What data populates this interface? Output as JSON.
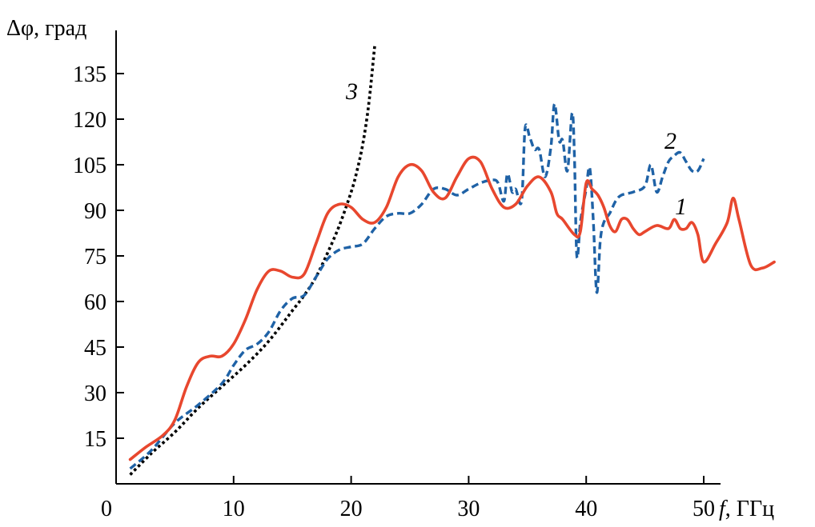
{
  "chart_data": {
    "type": "line",
    "ylabel": "Δφ, град",
    "xlabel_var": "f",
    "xlabel_unit": ", ГГц",
    "x_ticks": [
      "0",
      "10",
      "20",
      "30",
      "40",
      "50"
    ],
    "y_ticks": [
      "15",
      "30",
      "45",
      "60",
      "75",
      "90",
      "105",
      "120",
      "135"
    ],
    "xlim": [
      0,
      56
    ],
    "ylim": [
      0,
      145
    ],
    "grid": false,
    "legend": "none",
    "series": [
      {
        "label": "1",
        "color": "#e8472e",
        "style": "solid",
        "points": [
          [
            1.2,
            8
          ],
          [
            2.5,
            12
          ],
          [
            4,
            16
          ],
          [
            5,
            21
          ],
          [
            6,
            32
          ],
          [
            7,
            40
          ],
          [
            8,
            42
          ],
          [
            9,
            42
          ],
          [
            10,
            46
          ],
          [
            11,
            54
          ],
          [
            12,
            64
          ],
          [
            13,
            70
          ],
          [
            14,
            70
          ],
          [
            15,
            68
          ],
          [
            16,
            69
          ],
          [
            17,
            79
          ],
          [
            18,
            89
          ],
          [
            19,
            92
          ],
          [
            20,
            91
          ],
          [
            21,
            87
          ],
          [
            22,
            86
          ],
          [
            23,
            91
          ],
          [
            24,
            101
          ],
          [
            25,
            105
          ],
          [
            26,
            103
          ],
          [
            27,
            96
          ],
          [
            28,
            94
          ],
          [
            29,
            101
          ],
          [
            30,
            107
          ],
          [
            31,
            106
          ],
          [
            32,
            97
          ],
          [
            33,
            91
          ],
          [
            34,
            92
          ],
          [
            35,
            98
          ],
          [
            36,
            101
          ],
          [
            37,
            96
          ],
          [
            37.5,
            89
          ],
          [
            38,
            87
          ],
          [
            39,
            82
          ],
          [
            39.5,
            83
          ],
          [
            40,
            99
          ],
          [
            40.5,
            97
          ],
          [
            41,
            95
          ],
          [
            41.5,
            91
          ],
          [
            42,
            85
          ],
          [
            42.5,
            83
          ],
          [
            43,
            87
          ],
          [
            43.5,
            87
          ],
          [
            44,
            84
          ],
          [
            44.5,
            82
          ],
          [
            45,
            83
          ],
          [
            46,
            85
          ],
          [
            47,
            84
          ],
          [
            47.5,
            87
          ],
          [
            48,
            84
          ],
          [
            48.5,
            84
          ],
          [
            49,
            86
          ],
          [
            49.5,
            82
          ],
          [
            50,
            73
          ],
          [
            51,
            79
          ],
          [
            52,
            86
          ],
          [
            52.5,
            94
          ],
          [
            53,
            87
          ],
          [
            54,
            72
          ],
          [
            55,
            71
          ],
          [
            56,
            73
          ]
        ]
      },
      {
        "label": "2",
        "color": "#1f62a6",
        "style": "dashed",
        "points": [
          [
            1.2,
            5
          ],
          [
            3,
            11
          ],
          [
            5,
            20
          ],
          [
            7,
            26
          ],
          [
            9,
            33
          ],
          [
            10,
            39
          ],
          [
            11,
            44
          ],
          [
            12,
            46
          ],
          [
            13,
            50
          ],
          [
            14,
            57
          ],
          [
            15,
            61
          ],
          [
            16,
            62
          ],
          [
            17,
            68
          ],
          [
            18,
            74
          ],
          [
            19,
            77
          ],
          [
            20,
            78
          ],
          [
            21,
            79
          ],
          [
            22,
            84
          ],
          [
            23,
            88
          ],
          [
            24,
            89
          ],
          [
            25,
            89
          ],
          [
            26,
            92
          ],
          [
            27,
            97
          ],
          [
            28,
            97
          ],
          [
            29,
            95
          ],
          [
            30,
            97
          ],
          [
            31,
            99
          ],
          [
            32,
            100
          ],
          [
            32.5,
            99
          ],
          [
            33,
            93
          ],
          [
            33.3,
            102
          ],
          [
            33.7,
            96
          ],
          [
            34,
            97
          ],
          [
            34.5,
            93
          ],
          [
            34.8,
            117
          ],
          [
            35.2,
            114
          ],
          [
            35.6,
            110
          ],
          [
            36,
            110
          ],
          [
            36.5,
            101
          ],
          [
            37,
            111
          ],
          [
            37.3,
            125
          ],
          [
            37.7,
            113
          ],
          [
            38,
            113
          ],
          [
            38.4,
            103
          ],
          [
            38.8,
            122
          ],
          [
            39,
            108
          ],
          [
            39.2,
            75
          ],
          [
            39.5,
            86
          ],
          [
            39.8,
            93
          ],
          [
            40,
            97
          ],
          [
            40.3,
            104
          ],
          [
            40.6,
            87
          ],
          [
            40.9,
            63
          ],
          [
            41.2,
            80
          ],
          [
            41.5,
            86
          ],
          [
            42,
            89
          ],
          [
            42.5,
            93
          ],
          [
            43,
            95
          ],
          [
            44,
            96
          ],
          [
            45,
            98
          ],
          [
            45.5,
            105
          ],
          [
            46,
            96
          ],
          [
            46.5,
            101
          ],
          [
            47,
            106
          ],
          [
            47.5,
            108
          ],
          [
            48,
            109
          ],
          [
            48.5,
            106
          ],
          [
            49,
            103
          ],
          [
            49.5,
            103
          ],
          [
            50,
            107
          ]
        ]
      },
      {
        "label": "3",
        "color": "#000000",
        "style": "dotted",
        "points": [
          [
            1.2,
            3
          ],
          [
            3,
            10
          ],
          [
            5,
            17
          ],
          [
            7,
            25
          ],
          [
            9,
            32
          ],
          [
            11,
            39
          ],
          [
            13,
            47
          ],
          [
            15,
            57
          ],
          [
            16,
            62
          ],
          [
            17,
            68
          ],
          [
            18,
            76
          ],
          [
            19,
            85
          ],
          [
            20,
            96
          ],
          [
            20.5,
            103
          ],
          [
            21,
            112
          ],
          [
            21.5,
            125
          ],
          [
            22,
            144
          ]
        ]
      }
    ]
  }
}
